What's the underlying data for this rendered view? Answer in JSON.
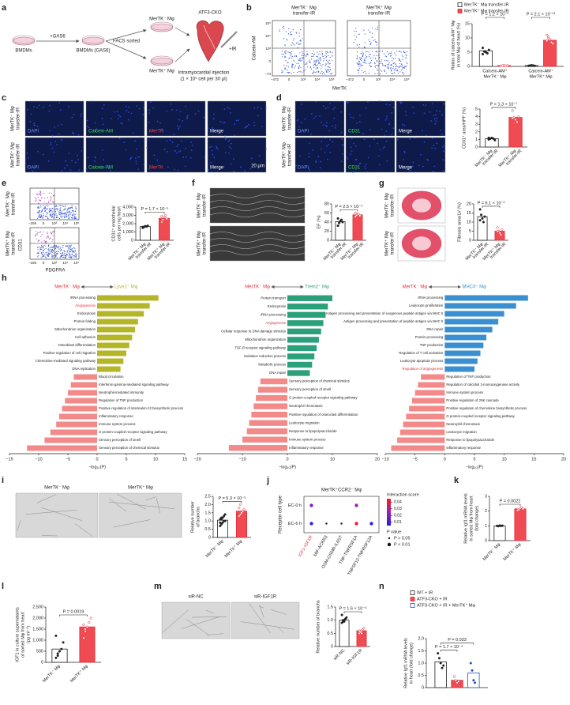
{
  "panel_letters": [
    "a",
    "b",
    "c",
    "d",
    "e",
    "f",
    "g",
    "h",
    "i",
    "j",
    "k",
    "l",
    "m",
    "n"
  ],
  "panel_a": {
    "bmdm": "BMDMs",
    "gas6": "+GAS6",
    "bmdm_gas6": "BMDMs (GAS6)",
    "facs": "FACS sorted",
    "neg": "MerTK⁻ Mφ",
    "pos": "MerTK⁺ Mφ",
    "cko": "ATF3-CKO",
    "ir": "+IR",
    "injection": "Intramyocardial injection",
    "dose": "(1 × 10⁵ cell per 30 μl)"
  },
  "flow_b": {
    "titles": [
      [
        "MerTK⁻ Mφ",
        "transfer-IR"
      ],
      [
        "MerTK⁺ Mφ",
        "transfer-IR"
      ]
    ],
    "ylabel": "Calcein-AM",
    "xlabel": "MerTK",
    "yticks": [
      "10⁵",
      "10⁴",
      "10³",
      "0",
      "−74"
    ],
    "xticks": [
      "−472",
      "0",
      "10³",
      "10⁴",
      "10⁵"
    ]
  },
  "images_c": {
    "rows": [
      [
        "MerTK⁻ Mφ",
        "transfer-IR"
      ],
      [
        "MerTK⁺ Mφ",
        "transfer-IR"
      ]
    ],
    "columns": [
      "DAPI",
      "Calcein-AM",
      "MerTK",
      "Merge"
    ],
    "scale_bar": "20 μm"
  },
  "images_d": {
    "rows": [
      [
        "MerTK⁻ Mφ",
        "transfer-IR"
      ],
      [
        "MerTK⁺ Mφ",
        "transfer-IR"
      ]
    ],
    "columns": [
      "DAPI",
      "CD31",
      "Merge"
    ]
  },
  "flow_e": {
    "rows": [
      [
        "MerTK⁻ Mφ",
        "transfer-IR"
      ],
      [
        "MerTK⁺ Mφ",
        "transfer-IR"
      ]
    ],
    "ylabel": "CD31",
    "xlabel": "PDGFRA",
    "yticks": [
      "10⁵",
      "10⁴",
      "10³",
      "0",
      "−159"
    ],
    "xticks": [
      "−159",
      "0",
      "10³",
      "10⁴",
      "10⁵"
    ]
  },
  "images_f": {
    "rows": [
      [
        "MerTK⁻ Mφ",
        "transfer-IR"
      ],
      [
        "MerTK⁺ Mφ",
        "transfer-IR"
      ]
    ]
  },
  "images_g": {
    "rows": [
      [
        "MerTK⁻ Mφ",
        "transfer-IR"
      ],
      [
        "MerTK⁺ Mφ",
        "transfer-IR"
      ]
    ]
  },
  "images_i": {
    "columns": [
      "MerTK⁻ Mφ",
      "MerTK⁺ Mφ"
    ]
  },
  "images_m": {
    "columns": [
      "siR-NC",
      "siR-IGF1R"
    ]
  },
  "chart_data": [
    {
      "type": "bar",
      "ylabel": [
        "Ratios of calcein-AM⁺ Mφ",
        "in total Mφ of heart (%)"
      ],
      "categories": [
        [
          "Calcein-AM⁺",
          "MerTK⁻ Mφ"
        ],
        [
          "Calcein-AM⁺",
          "MerTK⁺ Mφ"
        ]
      ],
      "series": [
        {
          "name": "MerTK⁻ Mφ transfer-IR",
          "color": "#222222",
          "fill": "#ffffff",
          "values": [
            5.5,
            0.3
          ],
          "points": [
            [
              6.5,
              5.2,
              5.0,
              4.6,
              5.8,
              4.3
            ],
            [
              0.2,
              0.3,
              0.4,
              0.3,
              0.2
            ]
          ]
        },
        {
          "name": "MerTK⁺ Mφ transfer-IR",
          "color": "#e0303a",
          "fill": "#f04a52",
          "values": [
            0.3,
            9.2
          ],
          "points": [
            [
              0.2,
              0.3,
              0.4,
              0.2,
              0.3
            ],
            [
              11,
              10,
              9.5,
              8.5,
              8.0,
              9.0,
              10.5
            ]
          ]
        }
      ],
      "ylim": [
        0,
        15
      ],
      "yticks": [
        0,
        5,
        10,
        15
      ],
      "p_values": [
        "P = 1.2 × 10⁻⁵",
        "P = 2.1 × 10⁻¹³"
      ]
    },
    {
      "type": "bar",
      "ylabel": [
        "CD31⁺ area/HPF (%)"
      ],
      "categories": [
        [
          "MerTK⁻ Mφ",
          "transfer-IR"
        ],
        [
          "MerTK⁺ Mφ",
          "transfer-IR"
        ]
      ],
      "values": [
        1.1,
        3.9
      ],
      "points": [
        [
          1.0,
          1.1,
          1.2,
          1.1,
          0.9,
          1.2
        ],
        [
          4.8,
          3.9,
          3.6,
          3.3,
          4.0,
          3.8
        ]
      ],
      "colors": [
        "#222222",
        "#e0303a"
      ],
      "fills": [
        "#ffffff",
        "#f04a52"
      ],
      "ylim": [
        0,
        5
      ],
      "yticks": [
        0,
        1,
        2,
        3,
        4,
        5
      ],
      "p_values": [
        "P = 1.3 × 10⁻⁷"
      ]
    },
    {
      "type": "bar",
      "ylabel": [
        "CD31⁺ endothelial",
        "cells per mg heart"
      ],
      "categories": [
        [
          "MerTK⁻ Mφ",
          "transfer-IR"
        ],
        [
          "MerTK⁺ Mφ",
          "transfer-IR"
        ]
      ],
      "values": [
        1650,
        2650
      ],
      "points": [
        [
          1500,
          1600,
          1700,
          1650,
          1750,
          1600
        ],
        [
          2200,
          2500,
          2800,
          3000,
          2600,
          2900
        ]
      ],
      "colors": [
        "#222222",
        "#e0303a"
      ],
      "fills": [
        "#ffffff",
        "#f04a52"
      ],
      "ylim": [
        0,
        4000
      ],
      "yticks": [
        0,
        {
          "value": 1000,
          "label": "1,000"
        },
        {
          "value": 2000,
          "label": "2,000"
        },
        {
          "value": 3000,
          "label": "3,000"
        },
        {
          "value": 4000,
          "label": "4,000"
        }
      ],
      "p_values": [
        "P = 1.7 × 10⁻⁵"
      ]
    },
    {
      "type": "bar",
      "ylabel": [
        "EF (%)"
      ],
      "categories": [
        [
          "MerTK⁻ Mφ",
          "transfer-IR"
        ],
        [
          "MerTK⁺ Mφ",
          "transfer-IR"
        ]
      ],
      "values": [
        41,
        56
      ],
      "points": [
        [
          32,
          38,
          42,
          45,
          40,
          48
        ],
        [
          52,
          55,
          58,
          57,
          54,
          60
        ]
      ],
      "colors": [
        "#222222",
        "#e0303a"
      ],
      "fills": [
        "#ffffff",
        "#f04a52"
      ],
      "ylim": [
        0,
        80
      ],
      "yticks": [
        0,
        20,
        40,
        60,
        80
      ],
      "p_values": [
        "P = 2.5 × 10⁻⁴"
      ]
    },
    {
      "type": "bar",
      "ylabel": [
        "Fibrosis area/LV (%)"
      ],
      "categories": [
        [
          "MerTK⁻ Mφ",
          "transfer-IR"
        ],
        [
          "MerTK⁺ Mφ",
          "transfer-IR"
        ]
      ],
      "values": [
        13,
        5
      ],
      "points": [
        [
          17,
          14,
          12,
          10,
          13,
          11
        ],
        [
          7,
          5,
          4,
          3,
          6,
          5
        ]
      ],
      "colors": [
        "#222222",
        "#e0303a"
      ],
      "fills": [
        "#ffffff",
        "#f04a52"
      ],
      "ylim": [
        0,
        20
      ],
      "yticks": [
        0,
        5,
        10,
        15,
        20
      ],
      "p_values": [
        "P = 6.1 × 10⁻³"
      ]
    },
    {
      "type": "diverging_bar",
      "left_label": "MerTK⁻ Mφ",
      "right_label": "Lyve1⁺ Mφ",
      "left_color": "#e0303a",
      "color": "#b5b52a",
      "negative_color": "#f28a8a",
      "highlight_color": "#e0303a",
      "highlighted": [
        1
      ],
      "categories": [
        "rRNA processing",
        "Angiogenesis",
        "Endocytosis",
        "Protein folding",
        "Mitochondrion organization",
        "Cell adhesion",
        "Osteoblast differentiation",
        "Positive regulation of cell migration",
        "Chemokine-mediated signaling pathway",
        "DNA replication",
        "Blood circulation",
        "Interferon-gamma-mediated signaling pathway",
        "Neutrophil-mediated immunity",
        "Regulation of TNF production",
        "Positive regulation of interleukin-12 biosynthetic process",
        "Inflammatory response",
        "Immune system process",
        "G protein-coupled receptor signaling pathway",
        "Sensory perception of smell",
        "Sensory perception of chemical stimulus"
      ],
      "values": [
        10.5,
        9,
        8,
        7,
        6.5,
        6,
        5.5,
        5,
        4.5,
        4,
        -4,
        -4.5,
        -5,
        -5.5,
        -6,
        -6.5,
        -7,
        -8,
        -9,
        -12
      ],
      "xlim": [
        -15,
        15
      ],
      "xticks": [
        {
          "value": -15,
          "label": "−15"
        },
        {
          "value": -10,
          "label": "−10"
        },
        {
          "value": -5,
          "label": "−5"
        },
        0,
        5,
        10,
        15
      ],
      "xlabel": "−log₁₀(P)"
    },
    {
      "type": "diverging_bar",
      "left_label": "MerTK⁻ Mφ",
      "right_label": "Trem2⁺ Mφ",
      "left_color": "#e0303a",
      "color": "#2ba07a",
      "negative_color": "#f28a8a",
      "highlight_color": "#e0303a",
      "highlighted": [
        3
      ],
      "categories": [
        "Protein transport",
        "Endocytosis",
        "rRNA processing",
        "Angiogenesis",
        "Cellular response to DNA damage stimulus",
        "Mitochondrion organization",
        "TGF-β receptor signaling pathway",
        "Oxidation reduction process",
        "Metabolic process",
        "DNA repair",
        "Sensory perception of chemical stimulus",
        "Sensory perception of smell",
        "G protein-coupled receptor signaling pathway",
        "Neutrophil chemotaxis",
        "Positive regulation of osteoclast differentiation",
        "Leukocyte migration",
        "Response to lipopolysaccharide",
        "Immune system process",
        "Inflammatory response"
      ],
      "values": [
        10,
        9,
        8.5,
        8,
        7.5,
        7,
        6.5,
        6,
        5.5,
        5,
        -6,
        -6.5,
        -7,
        -7.5,
        -8,
        -8.5,
        -9,
        -10,
        -13
      ],
      "xlim": [
        -20,
        20
      ],
      "xticks": [
        {
          "value": -20,
          "label": "−20"
        },
        {
          "value": -10,
          "label": "−10"
        },
        0,
        10,
        20
      ],
      "xlabel": "−log₁₀(P)"
    },
    {
      "type": "diverging_bar",
      "left_label": "MerTK⁻ Mφ",
      "right_label": "MHCII⁺ Mφ",
      "left_color": "#e0303a",
      "color": "#3a8fd0",
      "negative_color": "#f28a8a",
      "highlight_color": "#e0303a",
      "highlighted": [
        9
      ],
      "categories": [
        "rRNA processing",
        "Leukocyte proliferation",
        "Antigen processing and presentation of exogenous peptide antigen via MHC II",
        "Antigen processing and presentation of peptide antigen via MHC II",
        "DNA repair",
        "Protein processing",
        "TNF production",
        "Regulation of T cell activation",
        "Leukocyte apoptotic process",
        "Regulation of angiogenesis",
        "Regulation of TNF production",
        "Regulation of calcidiol 1-monooxygenase activity",
        "Immune system process",
        "Positive regulation of JNK cascade",
        "Positive regulation of chemokine biosynthetic process",
        "G protein-coupled receptor signaling pathway",
        "Neutrophil chemotaxis",
        "Leukocyte migration",
        "Response to lipopolysaccharide",
        "Inflammatory response"
      ],
      "values": [
        14,
        12,
        10,
        9,
        8,
        7,
        6.5,
        6,
        5.5,
        5,
        -4,
        -4.5,
        -5,
        -5.5,
        -6,
        -6.5,
        -7,
        -7.5,
        -8,
        -9
      ],
      "xlim": [
        -10,
        20
      ],
      "xticks": [
        {
          "value": -10,
          "label": "−10"
        },
        {
          "value": -5,
          "label": "−5"
        },
        0,
        5,
        10,
        15,
        20
      ],
      "xlabel": "−log₁₀(P)"
    },
    {
      "type": "bar",
      "ylabel": [
        "Relative number",
        "of branchs"
      ],
      "categories": [
        [
          "MerTK⁻ Mφ"
        ],
        [
          "MerTK⁺ Mφ"
        ]
      ],
      "values": [
        1.05,
        1.6
      ],
      "points": [
        [
          0.7,
          0.8,
          0.9,
          1.0,
          1.0,
          1.1,
          1.1,
          1.2,
          1.3,
          1.4,
          0.9,
          1.2
        ],
        [
          1.3,
          1.4,
          1.5,
          1.6,
          1.7,
          1.8,
          2.0,
          1.5,
          1.6
        ]
      ],
      "colors": [
        "#222222",
        "#e0303a"
      ],
      "fills": [
        "#ffffff",
        "#f04a52"
      ],
      "ylim": [
        0,
        2.5
      ],
      "yticks": [
        0,
        0.5,
        {
          "value": 1,
          "label": "1.0"
        },
        1.5,
        {
          "value": 2,
          "label": "2.0"
        },
        2.5
      ],
      "p_values": [
        "P = 5.3 × 10⁻⁵"
      ]
    },
    {
      "type": "dot",
      "title": "MerTK⁺CCR2⁻ Mφ",
      "ylabel": "Receptor cell type",
      "ycategories": [
        "EC-0 h",
        "EC-6 h"
      ],
      "xcategories": [
        "IGF1-IGF1R",
        "MIF-ACKR3",
        "OSM-OSMR-IL6ST",
        "TNF-TNFRSF1A",
        "TNFSF12-TNFRSF12A"
      ],
      "highlighted": [
        0
      ],
      "highlight_color": "#e0303a",
      "scores": [
        [
          0.02,
          null,
          null,
          0.025,
          null
        ],
        [
          0.01,
          null,
          null,
          0.04,
          0.008
        ]
      ],
      "p_class": [
        [
          1,
          null,
          null,
          1,
          null
        ],
        [
          1,
          0,
          0,
          1,
          1
        ]
      ],
      "colorbar_title": "Interaction score",
      "clim": [
        0.005,
        0.045
      ],
      "colormap": [
        "#2020e0",
        "#a020b0",
        "#ff1a1a"
      ],
      "colorbar_ticks": [
        0.04,
        0.03,
        0.02,
        0.01
      ],
      "p_title": "P value",
      "p_legend": [
        "P > 0.05",
        "P < 0.01"
      ]
    },
    {
      "type": "bar",
      "ylabel": [
        "Relative Igf1 mRNA levels",
        "in sorted Mφ from heart",
        "(fold change)"
      ],
      "categories": [
        [
          "MerTK⁻ Mφ"
        ],
        [
          "MerTK⁺ Mφ"
        ]
      ],
      "values": [
        1.0,
        2.15
      ],
      "points": [
        [
          1.0,
          0.98,
          1.02,
          1.0,
          1.01
        ],
        [
          2.05,
          2.1,
          2.2,
          2.25,
          2.15
        ]
      ],
      "colors": [
        "#222222",
        "#e0303a"
      ],
      "fills": [
        "#ffffff",
        "#f04a52"
      ],
      "ylim": [
        0,
        3
      ],
      "yticks": [
        0,
        1,
        2,
        3
      ],
      "p_values": [
        "P = 0.0022"
      ]
    },
    {
      "type": "bar",
      "ylabel": [
        "IGF1 in culture supernatants",
        "of sorted Mφ from heart",
        "(pg ml⁻¹)"
      ],
      "categories": [
        [
          "MerTK⁻ Mφ"
        ],
        [
          "MerTK⁺ Mφ"
        ]
      ],
      "values": [
        600,
        1600
      ],
      "points": [
        [
          200,
          300,
          500,
          600,
          900,
          1200,
          400
        ],
        [
          1100,
          1400,
          1600,
          1800,
          2000,
          1700,
          1500
        ]
      ],
      "colors": [
        "#222222",
        "#e0303a"
      ],
      "fills": [
        "#ffffff",
        "#f04a52"
      ],
      "ylim": [
        0,
        2500
      ],
      "yticks": [
        0,
        500,
        {
          "value": 1000,
          "label": "1,000"
        },
        {
          "value": 1500,
          "label": "1,500"
        },
        {
          "value": 2000,
          "label": "2,000"
        },
        {
          "value": 2500,
          "label": "2,500"
        }
      ],
      "p_values": [
        "P = 0.0019"
      ]
    },
    {
      "type": "bar",
      "ylabel": [
        "Relative number of branchs"
      ],
      "categories": [
        [
          "siR-NC"
        ],
        [
          "siR-IGF1R"
        ]
      ],
      "values": [
        1.0,
        0.6
      ],
      "points": [
        [
          0.9,
          0.95,
          1.0,
          1.05,
          1.1,
          1.2,
          1.0,
          0.95
        ],
        [
          0.5,
          0.55,
          0.6,
          0.65,
          0.7,
          0.6,
          0.55,
          0.5
        ]
      ],
      "colors": [
        "#222222",
        "#e0303a"
      ],
      "fills": [
        "#ffffff",
        "#f04a52"
      ],
      "ylim": [
        0,
        1.5
      ],
      "yticks": [
        0,
        0.5,
        {
          "value": 1,
          "label": "1.0"
        },
        1.5
      ],
      "p_values": [
        "P = 1.6 × 10⁻⁶"
      ]
    },
    {
      "type": "bar",
      "ylabel": [
        "Relative Igf1 mRNA levels",
        "in heart (fold change)"
      ],
      "series": [
        {
          "name": "WT + IR",
          "color": "#222222",
          "fill": "#ffffff",
          "values": [
            1.05
          ],
          "points": [
            [
              1.4,
              1.2,
              1.0,
              0.8,
              0.9
            ]
          ]
        },
        {
          "name": "ATF3-CKO + IR",
          "color": "#e0303a",
          "fill": "#f04a52",
          "values": [
            0.3
          ],
          "points": [
            [
              0.45,
              0.3,
              0.2,
              0.25
            ]
          ]
        },
        {
          "name": "ATF3-CKO + IR + MerTK⁺ Mφ",
          "color": "#2050c0",
          "fill": "#ffffff",
          "values": [
            0.6
          ],
          "points": [
            [
              1.0,
              0.7,
              0.3,
              0.2
            ]
          ]
        }
      ],
      "ylim": [
        0,
        2
      ],
      "yticks": [
        0,
        0.5,
        {
          "value": 1,
          "label": "1.0"
        },
        1.5,
        {
          "value": 2,
          "label": "2.0"
        }
      ],
      "p_values": [
        "P = 1.7 × 10⁻⁴",
        "P = 0.033"
      ]
    }
  ]
}
